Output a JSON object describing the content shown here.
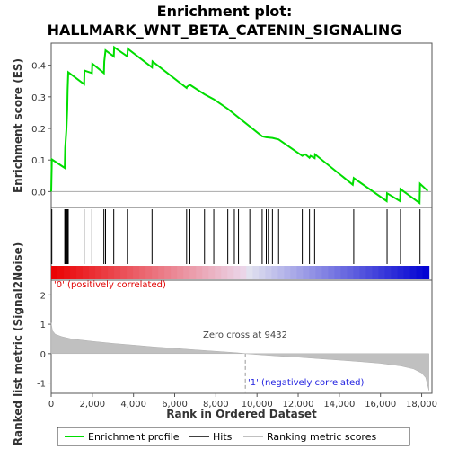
{
  "chart_data": {
    "type": "line",
    "title": [
      "Enrichment plot:",
      "HALLMARK_WNT_BETA_CATENIN_SIGNALING"
    ],
    "xlabel": "Rank in Ordered Dataset",
    "xlim": [
      0,
      18500
    ],
    "x_ticks": [
      0,
      2000,
      4000,
      6000,
      8000,
      10000,
      12000,
      14000,
      16000,
      18000
    ],
    "x_tick_labels": [
      "0",
      "2,000",
      "4,000",
      "6,000",
      "8,000",
      "10,000",
      "12,000",
      "14,000",
      "16,000",
      "18,000"
    ],
    "es_panel": {
      "ylabel": "Enrichment score (ES)",
      "ylim": [
        -0.05,
        0.47
      ],
      "y_ticks": [
        0.0,
        0.1,
        0.2,
        0.3,
        0.4
      ],
      "y_tick_labels": [
        "0.0",
        "0.1",
        "0.2",
        "0.3",
        "0.4"
      ],
      "series_color": "#00dd00",
      "points": [
        [
          0,
          0.0
        ],
        [
          30,
          0.102
        ],
        [
          660,
          0.075
        ],
        [
          680,
          0.138
        ],
        [
          740,
          0.198
        ],
        [
          780,
          0.262
        ],
        [
          800,
          0.322
        ],
        [
          830,
          0.378
        ],
        [
          1600,
          0.34
        ],
        [
          1620,
          0.383
        ],
        [
          1980,
          0.375
        ],
        [
          2000,
          0.405
        ],
        [
          2560,
          0.375
        ],
        [
          2580,
          0.412
        ],
        [
          2640,
          0.447
        ],
        [
          3040,
          0.428
        ],
        [
          3060,
          0.457
        ],
        [
          3700,
          0.428
        ],
        [
          3720,
          0.452
        ],
        [
          4900,
          0.393
        ],
        [
          4920,
          0.412
        ],
        [
          6580,
          0.328
        ],
        [
          6600,
          0.332
        ],
        [
          6740,
          0.338
        ],
        [
          7450,
          0.308
        ],
        [
          7900,
          0.292
        ],
        [
          8580,
          0.262
        ],
        [
          10250,
          0.175
        ],
        [
          10450,
          0.172
        ],
        [
          10750,
          0.17
        ],
        [
          11050,
          0.165
        ],
        [
          12200,
          0.113
        ],
        [
          12350,
          0.118
        ],
        [
          12550,
          0.107
        ],
        [
          12600,
          0.113
        ],
        [
          12800,
          0.106
        ],
        [
          12820,
          0.118
        ],
        [
          14650,
          0.022
        ],
        [
          14700,
          0.043
        ],
        [
          16300,
          -0.03
        ],
        [
          16320,
          -0.005
        ],
        [
          16950,
          -0.03
        ],
        [
          16970,
          0.008
        ],
        [
          17900,
          -0.036
        ],
        [
          17920,
          0.025
        ],
        [
          18300,
          0.002
        ]
      ]
    },
    "hits": [
      30,
      660,
      680,
      740,
      780,
      800,
      830,
      1600,
      1980,
      2560,
      2640,
      3040,
      3700,
      4900,
      6580,
      6740,
      7450,
      7900,
      8580,
      8900,
      9100,
      9650,
      10250,
      10450,
      10550,
      10750,
      11050,
      12200,
      12550,
      12800,
      14700,
      16320,
      16970,
      17920
    ],
    "ranked_metric": {
      "ylabel": "Ranked list metric (Signal2Noise)",
      "ylim": [
        -1.35,
        2.5
      ],
      "y_ticks": [
        -1,
        0,
        1,
        2
      ],
      "y_tick_labels": [
        "-1",
        "0",
        "1",
        "2"
      ],
      "points": [
        [
          0,
          1.05
        ],
        [
          60,
          0.78
        ],
        [
          200,
          0.66
        ],
        [
          500,
          0.58
        ],
        [
          1000,
          0.5
        ],
        [
          2000,
          0.42
        ],
        [
          3000,
          0.35
        ],
        [
          4000,
          0.29
        ],
        [
          5000,
          0.23
        ],
        [
          6000,
          0.18
        ],
        [
          7000,
          0.13
        ],
        [
          8000,
          0.08
        ],
        [
          9000,
          0.03
        ],
        [
          9432,
          0.0
        ],
        [
          10000,
          -0.03
        ],
        [
          11000,
          -0.08
        ],
        [
          12000,
          -0.12
        ],
        [
          13000,
          -0.17
        ],
        [
          14000,
          -0.22
        ],
        [
          15000,
          -0.27
        ],
        [
          16000,
          -0.33
        ],
        [
          17000,
          -0.42
        ],
        [
          17600,
          -0.52
        ],
        [
          18000,
          -0.66
        ],
        [
          18200,
          -0.82
        ],
        [
          18350,
          -1.25
        ]
      ]
    },
    "zero_cross_rank": 9432,
    "annotations": {
      "positive": "'0' (positively correlated)",
      "negative": "'1' (negatively correlated)",
      "zero_cross": "Zero cross at 9432"
    },
    "legend": {
      "placement": "bottom",
      "items": [
        {
          "label": "Enrichment profile",
          "color": "#00dd00"
        },
        {
          "label": "Hits",
          "color": "#000000"
        },
        {
          "label": "Ranking metric scores",
          "color": "#c0c0c0"
        }
      ]
    }
  }
}
